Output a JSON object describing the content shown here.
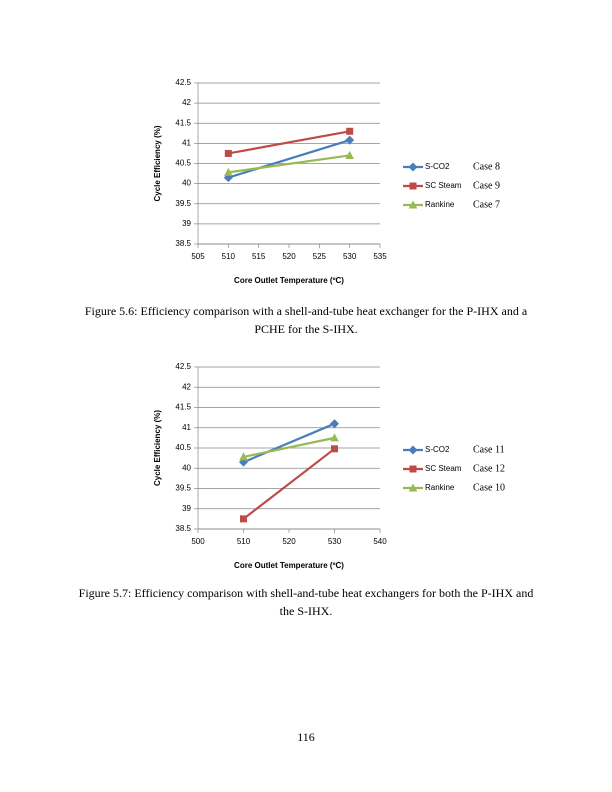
{
  "chart_data": [
    {
      "type": "line",
      "x_label": "Core Outlet Temperature (ºC)",
      "y_label": "Cycle Efficiency (%)",
      "xlim": [
        505,
        535
      ],
      "xticks": [
        505,
        510,
        515,
        520,
        525,
        530,
        535
      ],
      "ylim": [
        38.5,
        42.5
      ],
      "yticks": [
        42.5,
        42,
        41.5,
        41,
        40.5,
        40,
        39.5,
        39,
        38.5
      ],
      "grid": true,
      "series": [
        {
          "name": "S-CO2",
          "color": "#4a7ebb",
          "marker": "diamond",
          "x": [
            510,
            530
          ],
          "values": [
            40.15,
            41.08
          ]
        },
        {
          "name": "SC Steam",
          "color": "#be4b48",
          "marker": "square",
          "x": [
            510,
            530
          ],
          "values": [
            40.75,
            41.3
          ]
        },
        {
          "name": "Rankine",
          "color": "#98b954",
          "marker": "triangle",
          "x": [
            510,
            530
          ],
          "values": [
            40.28,
            40.7
          ]
        }
      ],
      "legend_notes": [
        "Case 8",
        "Case 9",
        "Case 7"
      ]
    },
    {
      "type": "line",
      "x_label": "Core Outlet Temperature (ºC)",
      "y_label": "Cycle Efficiency (%)",
      "xlim": [
        500,
        540
      ],
      "xticks": [
        500,
        510,
        520,
        530,
        540
      ],
      "ylim": [
        38.5,
        42.5
      ],
      "yticks": [
        42.5,
        42,
        41.5,
        41,
        40.5,
        40,
        39.5,
        39,
        38.5
      ],
      "grid": true,
      "series": [
        {
          "name": "S-CO2",
          "color": "#4a7ebb",
          "marker": "diamond",
          "x": [
            510,
            530
          ],
          "values": [
            40.15,
            41.1
          ]
        },
        {
          "name": "SC Steam",
          "color": "#be4b48",
          "marker": "square",
          "x": [
            510,
            530
          ],
          "values": [
            38.75,
            40.48
          ]
        },
        {
          "name": "Rankine",
          "color": "#98b954",
          "marker": "triangle",
          "x": [
            510,
            530
          ],
          "values": [
            40.28,
            40.75
          ]
        }
      ],
      "legend_notes": [
        "Case 11",
        "Case 12",
        "Case 10"
      ]
    }
  ],
  "captions": [
    "Figure 5.6: Efficiency comparison with a shell-and-tube heat exchanger for the P-IHX and a PCHE for the S-IHX.",
    "Figure 5.7: Efficiency comparison with shell-and-tube heat exchangers for both the P-IHX and the S-IHX."
  ],
  "page_number": "116"
}
